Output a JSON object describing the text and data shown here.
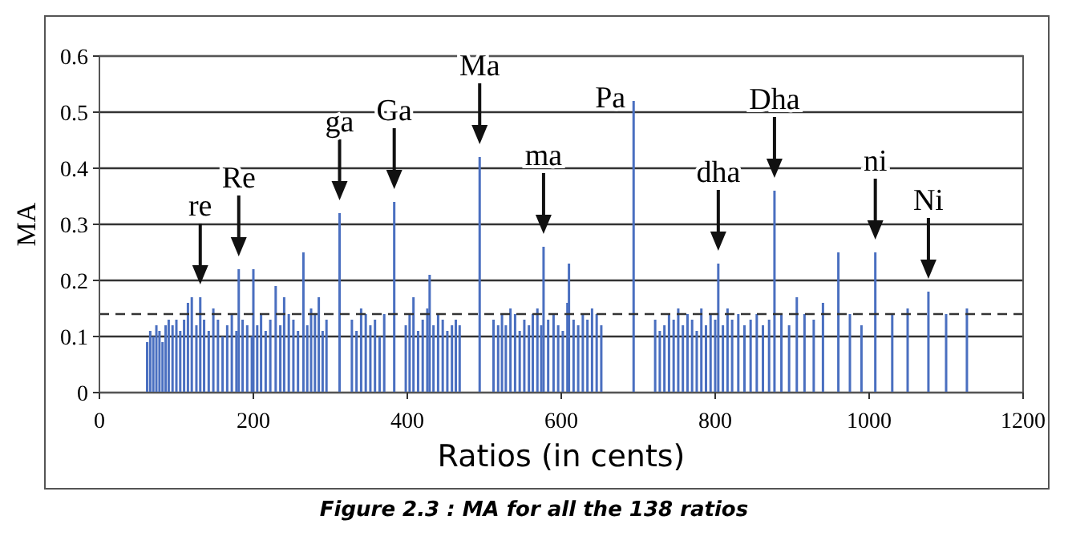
{
  "chart_data": {
    "type": "bar",
    "xlabel": "Ratios (in cents)",
    "ylabel": "MA",
    "color": "#4a6fc0",
    "x": [
      62,
      66,
      70,
      74,
      78,
      82,
      86,
      90,
      95,
      100,
      105,
      110,
      115,
      120,
      126,
      131,
      136,
      142,
      148,
      154,
      160,
      166,
      172,
      178,
      181,
      186,
      192,
      198,
      200,
      205,
      210,
      216,
      222,
      229,
      235,
      240,
      246,
      252,
      258,
      265,
      270,
      275,
      280,
      285,
      290,
      295,
      312,
      328,
      334,
      340,
      346,
      352,
      358,
      364,
      370,
      383,
      398,
      403,
      408,
      414,
      420,
      426,
      429,
      434,
      440,
      446,
      452,
      458,
      463,
      468,
      494,
      512,
      518,
      523,
      528,
      534,
      540,
      546,
      552,
      558,
      563,
      569,
      574,
      577,
      583,
      590,
      596,
      602,
      608,
      610,
      616,
      622,
      628,
      634,
      640,
      646,
      652,
      694,
      722,
      728,
      734,
      740,
      746,
      752,
      758,
      764,
      770,
      776,
      782,
      788,
      794,
      800,
      804,
      810,
      816,
      822,
      830,
      838,
      846,
      854,
      862,
      870,
      877,
      886,
      896,
      906,
      916,
      928,
      940,
      960,
      975,
      990,
      1008,
      1030,
      1050,
      1077,
      1100,
      1127
    ],
    "values": [
      0.09,
      0.11,
      0.1,
      0.12,
      0.11,
      0.09,
      0.12,
      0.13,
      0.12,
      0.13,
      0.11,
      0.13,
      0.16,
      0.17,
      0.12,
      0.17,
      0.13,
      0.11,
      0.15,
      0.13,
      0.1,
      0.12,
      0.14,
      0.11,
      0.22,
      0.13,
      0.12,
      0.1,
      0.22,
      0.12,
      0.14,
      0.11,
      0.13,
      0.19,
      0.12,
      0.17,
      0.14,
      0.13,
      0.11,
      0.25,
      0.12,
      0.15,
      0.14,
      0.17,
      0.11,
      0.13,
      0.32,
      0.13,
      0.11,
      0.15,
      0.14,
      0.12,
      0.13,
      0.1,
      0.14,
      0.34,
      0.12,
      0.14,
      0.17,
      0.11,
      0.13,
      0.15,
      0.21,
      0.12,
      0.14,
      0.13,
      0.11,
      0.12,
      0.13,
      0.12,
      0.42,
      0.13,
      0.12,
      0.14,
      0.12,
      0.15,
      0.14,
      0.11,
      0.13,
      0.12,
      0.14,
      0.15,
      0.12,
      0.26,
      0.13,
      0.14,
      0.12,
      0.11,
      0.16,
      0.23,
      0.13,
      0.12,
      0.14,
      0.13,
      0.15,
      0.14,
      0.12,
      0.52,
      0.13,
      0.11,
      0.12,
      0.14,
      0.13,
      0.15,
      0.12,
      0.14,
      0.13,
      0.11,
      0.15,
      0.12,
      0.14,
      0.13,
      0.23,
      0.12,
      0.15,
      0.13,
      0.14,
      0.12,
      0.13,
      0.14,
      0.12,
      0.13,
      0.36,
      0.14,
      0.12,
      0.17,
      0.14,
      0.13,
      0.16,
      0.25,
      0.14,
      0.12,
      0.25,
      0.14,
      0.15,
      0.18,
      0.14,
      0.15
    ],
    "xlim": [
      0,
      1200
    ],
    "xticks": [
      0,
      200,
      400,
      600,
      800,
      1000,
      1200
    ],
    "ylim": [
      0,
      0.6
    ],
    "yticks": [
      0,
      0.1,
      0.2,
      0.3,
      0.4,
      0.5,
      0.6
    ],
    "grid": "y",
    "ref_lines": [
      {
        "axis": "y",
        "value": 0.14,
        "color": "#333333",
        "line_style": "dashed"
      }
    ],
    "annotations": [
      {
        "text": "re",
        "x": 131,
        "y": 0.17
      },
      {
        "text": "Re",
        "x": 181,
        "y": 0.22
      },
      {
        "text": "ga",
        "x": 312,
        "y": 0.32
      },
      {
        "text": "Ga",
        "x": 383,
        "y": 0.34
      },
      {
        "text": "Ma",
        "x": 494,
        "y": 0.42
      },
      {
        "text": "ma",
        "x": 577,
        "y": 0.26
      },
      {
        "text": "Pa",
        "x": 694,
        "y": 0.52
      },
      {
        "text": "dha",
        "x": 804,
        "y": 0.23
      },
      {
        "text": "Dha",
        "x": 877,
        "y": 0.36
      },
      {
        "text": "ni",
        "x": 1008,
        "y": 0.25
      },
      {
        "text": "Ni",
        "x": 1077,
        "y": 0.18
      },
      "Figure 2.3 : MA for all the 138 ratios"
    ]
  }
}
